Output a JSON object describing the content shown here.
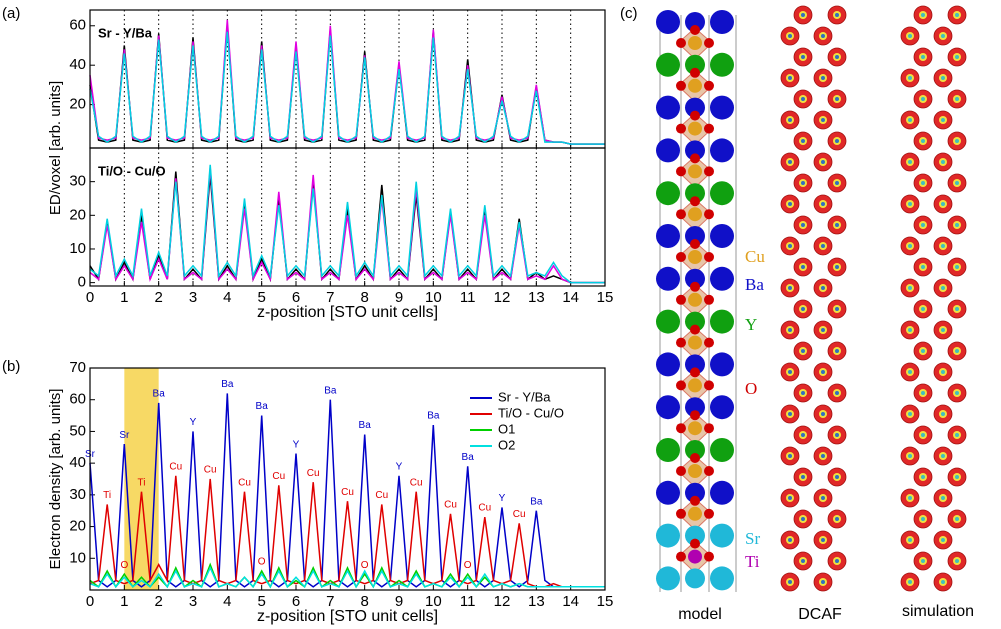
{
  "panel_labels": [
    "(a)",
    "(b)",
    "(c)"
  ],
  "chart_data": [
    {
      "type": "line",
      "title": "Sr - Y/Ba",
      "x": [
        0,
        0.25,
        0.5,
        0.75,
        1,
        1.25,
        1.5,
        1.75,
        2,
        2.25,
        2.5,
        2.75,
        3,
        3.25,
        3.5,
        3.75,
        4,
        4.25,
        4.5,
        4.75,
        5,
        5.25,
        5.5,
        5.75,
        6,
        6.25,
        6.5,
        6.75,
        7,
        7.25,
        7.5,
        7.75,
        8,
        8.25,
        8.5,
        8.75,
        9,
        9.25,
        9.5,
        9.75,
        10,
        10.25,
        10.5,
        10.75,
        11,
        11.25,
        11.5,
        11.75,
        12,
        12.25,
        12.5,
        12.75,
        13,
        13.25,
        13.5,
        13.75,
        14,
        14.25,
        14.5,
        14.75,
        15
      ],
      "series": [
        {
          "color": "#000000",
          "values": [
            30,
            2,
            1,
            2,
            50,
            2,
            1,
            2,
            56,
            2,
            1,
            2,
            54,
            2,
            1,
            2,
            60,
            2,
            1,
            2,
            52,
            2,
            1,
            2,
            50,
            2,
            1,
            2,
            58,
            2,
            1,
            2,
            47,
            2,
            1,
            2,
            40,
            2,
            1,
            2,
            57,
            2,
            1,
            2,
            43,
            2,
            1,
            2,
            25,
            2,
            1,
            2,
            29,
            2,
            1,
            1,
            0,
            0,
            0,
            0,
            0
          ]
        },
        {
          "color": "#e000e0",
          "values": [
            35,
            3,
            2,
            3,
            48,
            3,
            2,
            3,
            55,
            3,
            2,
            3,
            52,
            3,
            2,
            3,
            63,
            3,
            2,
            3,
            50,
            3,
            2,
            3,
            52,
            3,
            2,
            3,
            60,
            3,
            2,
            3,
            45,
            3,
            2,
            3,
            42,
            3,
            2,
            3,
            58,
            3,
            2,
            3,
            40,
            3,
            2,
            3,
            24,
            3,
            2,
            3,
            30,
            2,
            1,
            1,
            0,
            0,
            0,
            0,
            0
          ]
        },
        {
          "color": "#00d0e0",
          "values": [
            28,
            4,
            1,
            4,
            46,
            4,
            1,
            4,
            53,
            4,
            1,
            4,
            50,
            4,
            1,
            4,
            57,
            4,
            1,
            4,
            48,
            4,
            1,
            4,
            47,
            4,
            1,
            4,
            55,
            4,
            1,
            4,
            44,
            4,
            1,
            4,
            38,
            4,
            1,
            4,
            54,
            4,
            1,
            4,
            38,
            4,
            1,
            4,
            22,
            4,
            1,
            4,
            27,
            1,
            1,
            1,
            0,
            0,
            0,
            0,
            0
          ]
        }
      ],
      "xlim": [
        0,
        15
      ],
      "xticks": [
        0,
        1,
        2,
        3,
        4,
        5,
        6,
        7,
        8,
        9,
        10,
        11,
        12,
        13,
        14,
        15
      ],
      "xtick_labels": false,
      "ylim": [
        -2,
        68
      ],
      "yticks": [
        20,
        40,
        60
      ],
      "grid": "dotted"
    },
    {
      "type": "line",
      "title": "Ti/O - Cu/O",
      "xlabel": "z-position [STO unit cells]",
      "ylabel": "ED/voxel [arb. units]",
      "x": [
        0,
        0.25,
        0.5,
        0.75,
        1,
        1.25,
        1.5,
        1.75,
        2,
        2.25,
        2.5,
        2.75,
        3,
        3.25,
        3.5,
        3.75,
        4,
        4.25,
        4.5,
        4.75,
        5,
        5.25,
        5.5,
        5.75,
        6,
        6.25,
        6.5,
        6.75,
        7,
        7.25,
        7.5,
        7.75,
        8,
        8.25,
        8.5,
        8.75,
        9,
        9.25,
        9.5,
        9.75,
        10,
        10.25,
        10.5,
        10.75,
        11,
        11.25,
        11.5,
        11.75,
        12,
        12.25,
        12.5,
        12.75,
        13,
        13.25,
        13.5,
        13.75,
        14,
        14.25,
        14.5,
        14.75,
        15
      ],
      "series": [
        {
          "color": "#000000",
          "values": [
            5,
            1,
            18,
            1,
            6,
            1,
            20,
            1,
            8,
            1,
            33,
            1,
            4,
            1,
            32,
            1,
            5,
            1,
            24,
            1,
            7,
            1,
            25,
            1,
            4,
            1,
            30,
            1,
            4,
            1,
            22,
            1,
            5,
            1,
            29,
            1,
            4,
            1,
            26,
            1,
            4,
            1,
            21,
            1,
            4,
            1,
            22,
            1,
            4,
            1,
            19,
            1,
            3,
            1,
            2,
            1,
            0,
            0,
            0,
            0,
            0
          ]
        },
        {
          "color": "#e000e0",
          "values": [
            3,
            1,
            17,
            1,
            5,
            1,
            18,
            1,
            7,
            1,
            31,
            1,
            3,
            1,
            34,
            1,
            4,
            1,
            22,
            1,
            6,
            1,
            27,
            1,
            3,
            1,
            32,
            1,
            3,
            1,
            20,
            1,
            4,
            1,
            25,
            1,
            3,
            1,
            28,
            1,
            3,
            1,
            20,
            1,
            3,
            1,
            20,
            1,
            3,
            1,
            17,
            1,
            2,
            1,
            5,
            1,
            0,
            0,
            0,
            0,
            0
          ]
        },
        {
          "color": "#00d0e0",
          "values": [
            4,
            2,
            19,
            2,
            7,
            2,
            22,
            2,
            9,
            2,
            30,
            2,
            5,
            2,
            35,
            2,
            6,
            2,
            25,
            2,
            8,
            2,
            23,
            2,
            5,
            2,
            28,
            2,
            5,
            2,
            24,
            2,
            6,
            2,
            26,
            2,
            5,
            2,
            30,
            2,
            5,
            2,
            22,
            2,
            5,
            2,
            23,
            2,
            5,
            2,
            18,
            2,
            3,
            2,
            6,
            2,
            0,
            0,
            0,
            0,
            0
          ]
        }
      ],
      "xlim": [
        0,
        15
      ],
      "xticks": [
        0,
        1,
        2,
        3,
        4,
        5,
        6,
        7,
        8,
        9,
        10,
        11,
        12,
        13,
        14,
        15
      ],
      "ylim": [
        -1,
        40
      ],
      "yticks": [
        0,
        10,
        20,
        30
      ],
      "grid": "dotted"
    },
    {
      "type": "line",
      "xlabel": "z-position [STO unit cells]",
      "ylabel": "Electron density [arb. units]",
      "x": [
        0,
        0.25,
        0.5,
        0.75,
        1,
        1.25,
        1.5,
        1.75,
        2,
        2.25,
        2.5,
        2.75,
        3,
        3.25,
        3.5,
        3.75,
        4,
        4.25,
        4.5,
        4.75,
        5,
        5.25,
        5.5,
        5.75,
        6,
        6.25,
        6.5,
        6.75,
        7,
        7.25,
        7.5,
        7.75,
        8,
        8.25,
        8.5,
        8.75,
        9,
        9.25,
        9.5,
        9.75,
        10,
        10.25,
        10.5,
        10.75,
        11,
        11.25,
        11.5,
        11.75,
        12,
        12.25,
        12.5,
        12.75,
        13,
        13.25,
        13.5,
        13.75,
        14,
        14.25,
        14.5,
        14.75,
        15
      ],
      "highlight_x": [
        1,
        2
      ],
      "highlight_color": "#f6d24a",
      "legend": "upper right",
      "series": [
        {
          "name": "Sr - Y/Ba",
          "color": "#0000c8",
          "values": [
            40,
            3,
            1,
            3,
            46,
            3,
            1,
            3,
            59,
            3,
            1,
            3,
            50,
            3,
            1,
            3,
            62,
            3,
            1,
            3,
            55,
            3,
            1,
            3,
            43,
            3,
            1,
            3,
            60,
            3,
            1,
            3,
            49,
            3,
            1,
            3,
            36,
            3,
            1,
            3,
            52,
            3,
            1,
            3,
            39,
            3,
            1,
            3,
            26,
            3,
            1,
            3,
            25,
            3,
            1,
            1,
            1,
            1,
            1,
            1,
            1
          ],
          "peak_labels": [
            "Sr",
            null,
            null,
            null,
            "Sr",
            null,
            null,
            null,
            "Ba",
            null,
            null,
            null,
            "Y",
            null,
            null,
            null,
            "Ba",
            null,
            null,
            null,
            "Ba",
            null,
            null,
            null,
            "Y",
            null,
            null,
            null,
            "Ba",
            null,
            null,
            null,
            "Ba",
            null,
            null,
            null,
            "Y",
            null,
            null,
            null,
            "Ba",
            null,
            null,
            null,
            "Ba",
            null,
            null,
            null,
            "Y",
            null,
            null,
            null,
            "Ba",
            null,
            null,
            null,
            null,
            null,
            null,
            null,
            null
          ]
        },
        {
          "name": "Ti/O - Cu/O",
          "color": "#e00000",
          "values": [
            2,
            3,
            27,
            3,
            2,
            3,
            31,
            3,
            8,
            3,
            36,
            3,
            2,
            3,
            35,
            3,
            2,
            3,
            31,
            3,
            2,
            3,
            33,
            3,
            2,
            3,
            34,
            3,
            2,
            3,
            28,
            3,
            2,
            3,
            27,
            3,
            2,
            3,
            31,
            3,
            2,
            3,
            24,
            3,
            2,
            3,
            23,
            3,
            2,
            3,
            21,
            2,
            1,
            1,
            2,
            1,
            1,
            1,
            1,
            1,
            1
          ],
          "peak_labels": [
            null,
            null,
            "Ti",
            null,
            null,
            null,
            "Ti",
            null,
            null,
            null,
            "Cu",
            null,
            null,
            null,
            "Cu",
            null,
            null,
            null,
            "Cu",
            null,
            null,
            null,
            "Cu",
            null,
            null,
            null,
            "Cu",
            null,
            null,
            null,
            "Cu",
            null,
            null,
            null,
            "Cu",
            null,
            null,
            null,
            "Cu",
            null,
            null,
            null,
            "Cu",
            null,
            null,
            null,
            "Cu",
            null,
            null,
            null,
            "Cu",
            null,
            null,
            null,
            null,
            null,
            null,
            null,
            null,
            null,
            null
          ]
        },
        {
          "name": "O1",
          "color": "#00d000",
          "label_color": "#e00000",
          "values": [
            3,
            1,
            6,
            1,
            5,
            1,
            4,
            1,
            4,
            1,
            7,
            1,
            3,
            1,
            8,
            1,
            2,
            1,
            4,
            1,
            6,
            1,
            7,
            1,
            3,
            1,
            7,
            1,
            3,
            1,
            7,
            1,
            5,
            1,
            7,
            1,
            3,
            1,
            6,
            1,
            2,
            1,
            5,
            1,
            5,
            1,
            4,
            1,
            2,
            1,
            2,
            1,
            1,
            1,
            1,
            1,
            1,
            1,
            1,
            1,
            1
          ],
          "peak_labels": [
            null,
            null,
            null,
            null,
            "O",
            null,
            null,
            null,
            null,
            null,
            null,
            null,
            null,
            null,
            null,
            null,
            null,
            null,
            null,
            null,
            "O",
            null,
            null,
            null,
            null,
            null,
            null,
            null,
            null,
            null,
            null,
            null,
            "O",
            null,
            null,
            null,
            null,
            null,
            null,
            null,
            null,
            null,
            null,
            null,
            "O",
            null,
            null,
            null,
            null,
            null,
            null,
            null,
            null,
            null,
            null,
            null,
            null,
            null,
            null,
            null,
            null
          ]
        },
        {
          "name": "O2",
          "color": "#00e0e0",
          "values": [
            2,
            1,
            5,
            1,
            4,
            1,
            3,
            1,
            5,
            1,
            6,
            1,
            2,
            1,
            7,
            1,
            2,
            1,
            4,
            1,
            5,
            1,
            6,
            1,
            4,
            1,
            6,
            1,
            2,
            1,
            6,
            1,
            6,
            1,
            6,
            1,
            2,
            1,
            5,
            1,
            2,
            1,
            4,
            1,
            4,
            1,
            5,
            1,
            2,
            1,
            2,
            1,
            1,
            1,
            1,
            1,
            1,
            1,
            1,
            1,
            1
          ]
        }
      ],
      "xlim": [
        0,
        15
      ],
      "xticks": [
        0,
        1,
        2,
        3,
        4,
        5,
        6,
        7,
        8,
        9,
        10,
        11,
        12,
        13,
        14,
        15
      ],
      "ylim": [
        0,
        70
      ],
      "yticks": [
        10,
        20,
        30,
        40,
        50,
        60,
        70
      ]
    }
  ],
  "structure": {
    "legend": [
      {
        "name": "Cu",
        "color": "#e0a020"
      },
      {
        "name": "Ba",
        "color": "#1010c8"
      },
      {
        "name": "Y",
        "color": "#10a010"
      },
      {
        "name": "O",
        "color": "#d00000"
      },
      {
        "name": "Sr",
        "color": "#20b8d8"
      },
      {
        "name": "Ti",
        "color": "#b000b0"
      }
    ],
    "captions": [
      "model",
      "DCAF",
      "simulation"
    ]
  }
}
